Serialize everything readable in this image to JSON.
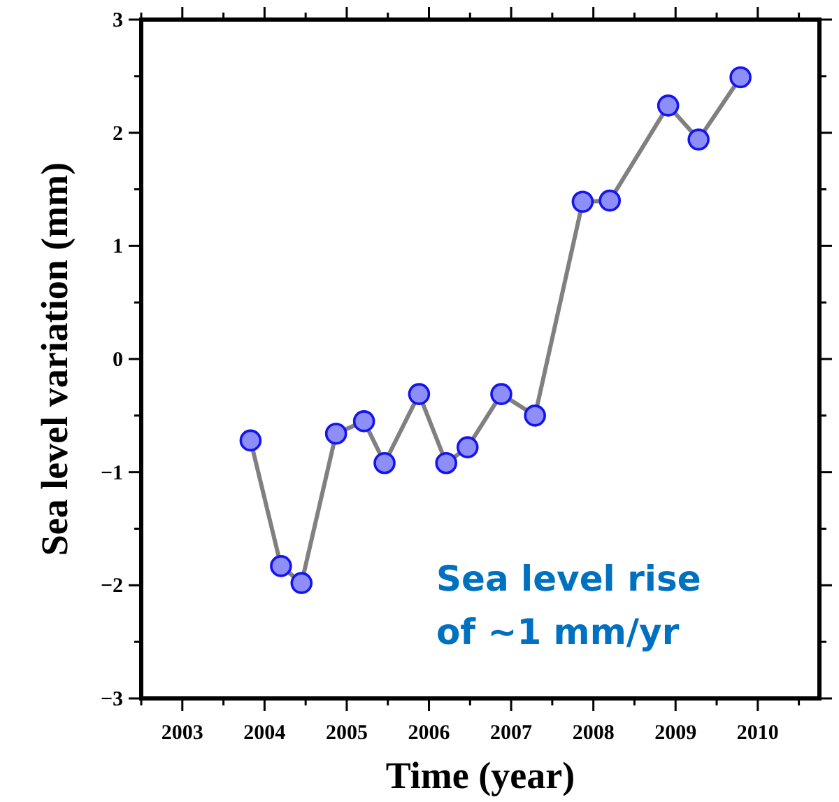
{
  "chart_data": {
    "type": "line",
    "xlabel": "Time (year)",
    "ylabel": "Sea level variation (mm)",
    "x": [
      2003.83,
      2004.2,
      2004.45,
      2004.87,
      2005.21,
      2005.46,
      2005.88,
      2006.21,
      2006.47,
      2006.88,
      2007.29,
      2007.87,
      2008.2,
      2008.91,
      2009.28,
      2009.79
    ],
    "series": [
      {
        "color": "#808080",
        "values": [
          -0.72,
          -1.83,
          -1.98,
          -0.66,
          -0.55,
          -0.92,
          -0.31,
          -0.92,
          -0.78,
          -0.31,
          -0.5,
          1.39,
          1.4,
          2.24,
          1.94,
          2.49
        ]
      }
    ],
    "marker": "circle",
    "line_style": "solid",
    "xlim": [
      2002.5,
      2010.75
    ],
    "xticks": [
      {
        "value": 2002.5,
        "label": null
      },
      2003,
      {
        "value": 2003.5,
        "label": null
      },
      2004,
      {
        "value": 2004.5,
        "label": null
      },
      2005,
      {
        "value": 2005.5,
        "label": null
      },
      2006,
      {
        "value": 2006.5,
        "label": null
      },
      2007,
      {
        "value": 2007.5,
        "label": null
      },
      2008,
      {
        "value": 2008.5,
        "label": null
      },
      2009,
      {
        "value": 2009.5,
        "label": null
      },
      2010,
      {
        "value": 2010.5,
        "label": null
      }
    ],
    "ylim": [
      -3,
      3
    ],
    "yticks": [
      -3,
      {
        "value": -2.5,
        "label": null
      },
      -2,
      {
        "value": -1.5,
        "label": null
      },
      -1,
      {
        "value": -0.5,
        "label": null
      },
      0,
      {
        "value": 0.5,
        "label": null
      },
      1,
      {
        "value": 1.5,
        "label": null
      },
      2,
      {
        "value": 2.5,
        "label": null
      },
      3
    ],
    "annotations": [
      "Sea level rise of ~1 mm/yr"
    ]
  }
}
